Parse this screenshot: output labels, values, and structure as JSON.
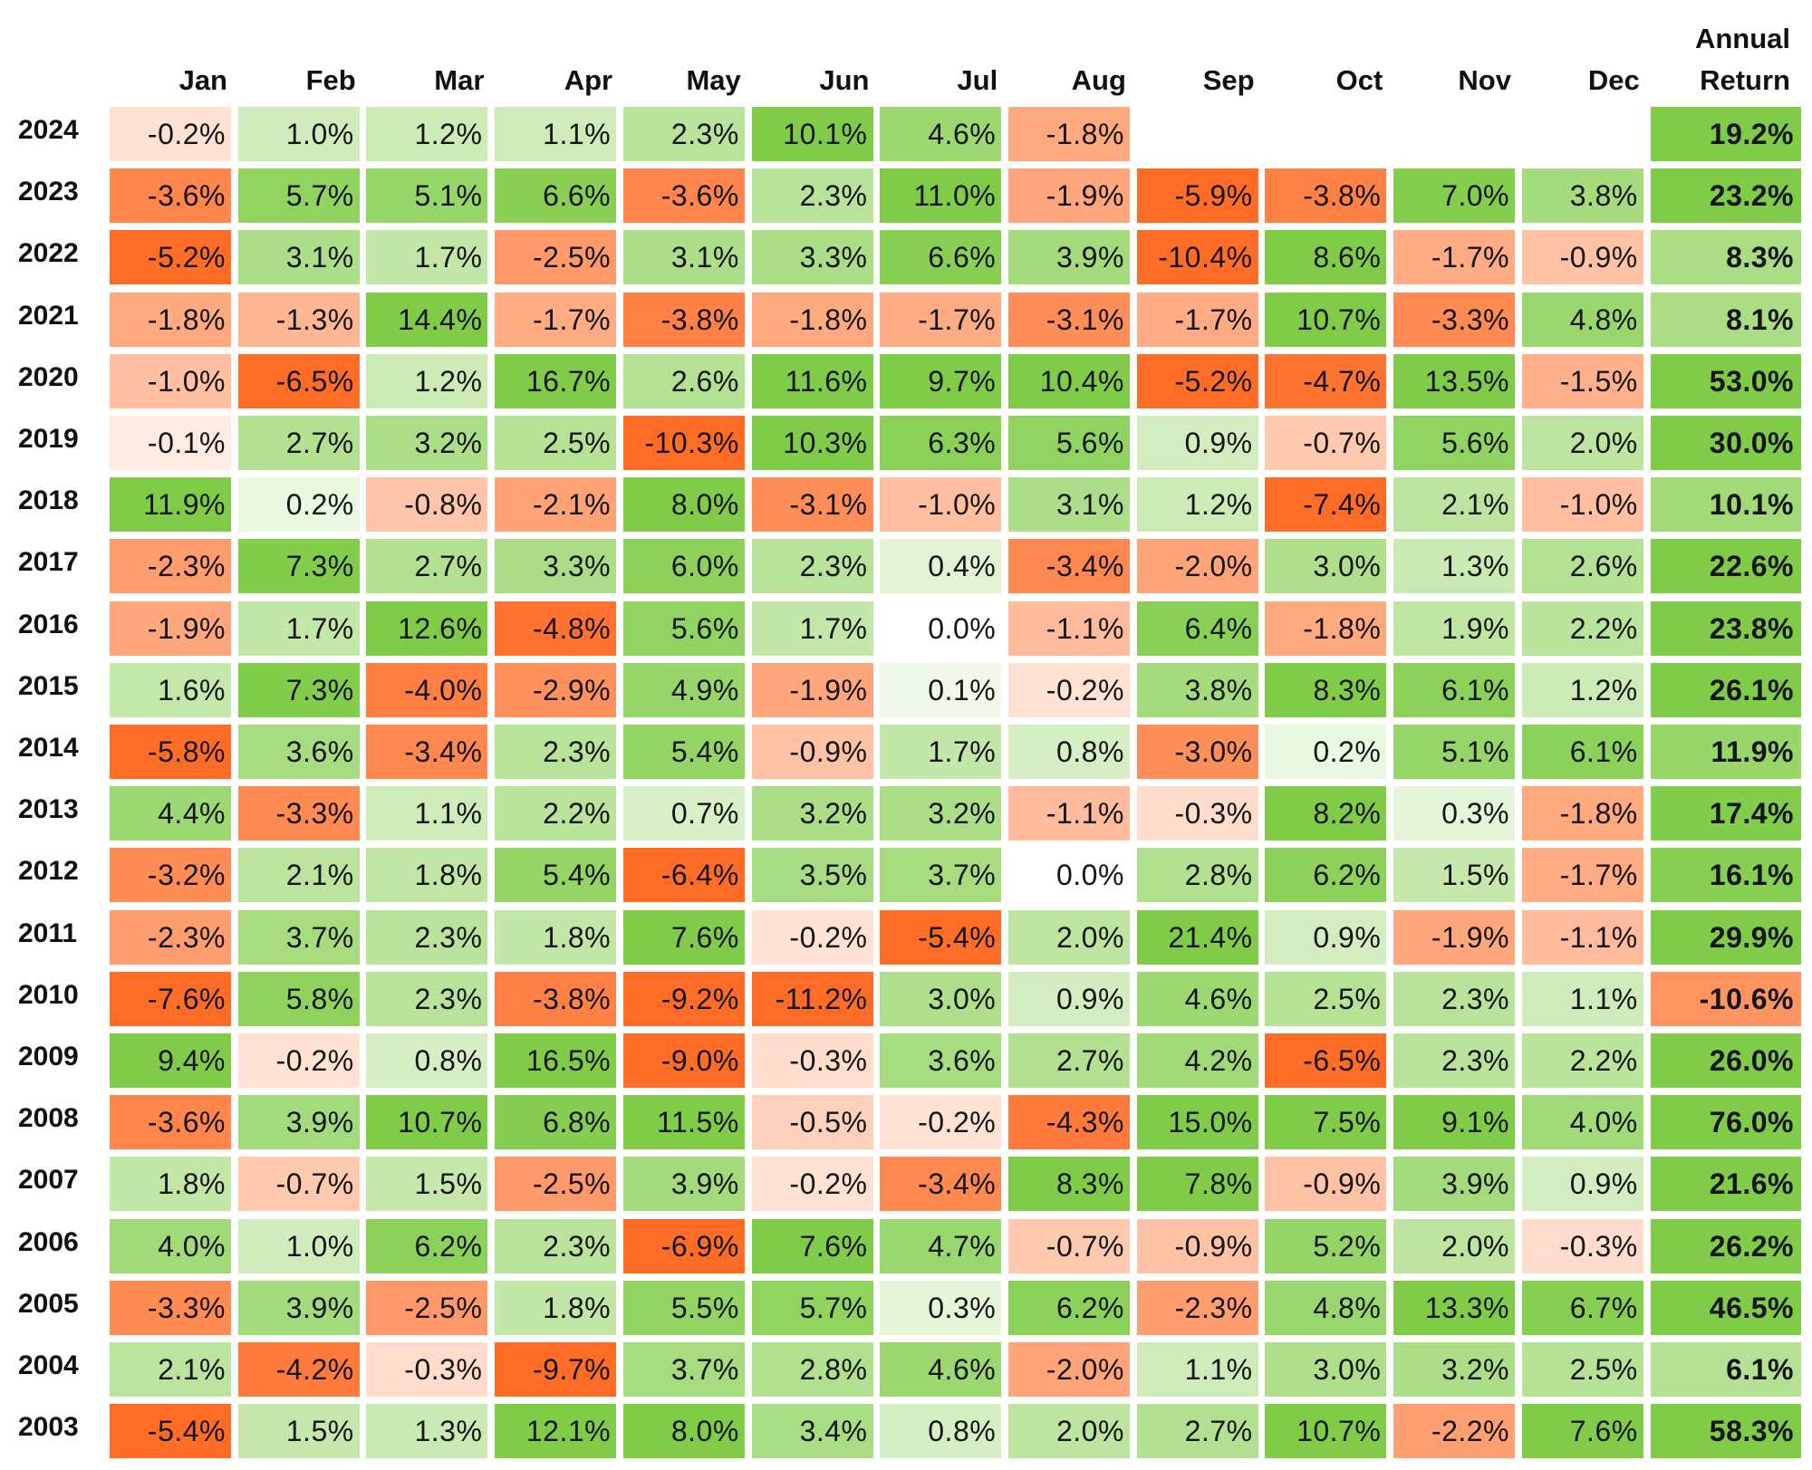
{
  "chart_data": {
    "type": "heatmap",
    "title": "",
    "columns": [
      "Jan",
      "Feb",
      "Mar",
      "Apr",
      "May",
      "Jun",
      "Jul",
      "Aug",
      "Sep",
      "Oct",
      "Nov",
      "Dec"
    ],
    "annual_header": [
      "Annual",
      "Return"
    ],
    "value_unit": "%",
    "color_scale": {
      "negative": "#ff6c26",
      "neutral": "#ffffff",
      "positive": "#80cc48"
    },
    "rows": [
      {
        "year": "2024",
        "values": [
          "-0.2%",
          "1.0%",
          "1.2%",
          "1.1%",
          "2.3%",
          "10.1%",
          "4.6%",
          "-1.8%",
          "",
          "",
          "",
          ""
        ],
        "annual": "19.2%"
      },
      {
        "year": "2023",
        "values": [
          "-3.6%",
          "5.7%",
          "5.1%",
          "6.6%",
          "-3.6%",
          "2.3%",
          "11.0%",
          "-1.9%",
          "-5.9%",
          "-3.8%",
          "7.0%",
          "3.8%"
        ],
        "annual": "23.2%"
      },
      {
        "year": "2022",
        "values": [
          "-5.2%",
          "3.1%",
          "1.7%",
          "-2.5%",
          "3.1%",
          "3.3%",
          "6.6%",
          "3.9%",
          "-10.4%",
          "8.6%",
          "-1.7%",
          "-0.9%"
        ],
        "annual": "8.3%"
      },
      {
        "year": "2021",
        "values": [
          "-1.8%",
          "-1.3%",
          "14.4%",
          "-1.7%",
          "-3.8%",
          "-1.8%",
          "-1.7%",
          "-3.1%",
          "-1.7%",
          "10.7%",
          "-3.3%",
          "4.8%"
        ],
        "annual": "8.1%"
      },
      {
        "year": "2020",
        "values": [
          "-1.0%",
          "-6.5%",
          "1.2%",
          "16.7%",
          "2.6%",
          "11.6%",
          "9.7%",
          "10.4%",
          "-5.2%",
          "-4.7%",
          "13.5%",
          "-1.5%"
        ],
        "annual": "53.0%"
      },
      {
        "year": "2019",
        "values": [
          "-0.1%",
          "2.7%",
          "3.2%",
          "2.5%",
          "-10.3%",
          "10.3%",
          "6.3%",
          "5.6%",
          "0.9%",
          "-0.7%",
          "5.6%",
          "2.0%"
        ],
        "annual": "30.0%"
      },
      {
        "year": "2018",
        "values": [
          "11.9%",
          "0.2%",
          "-0.8%",
          "-2.1%",
          "8.0%",
          "-3.1%",
          "-1.0%",
          "3.1%",
          "1.2%",
          "-7.4%",
          "2.1%",
          "-1.0%"
        ],
        "annual": "10.1%"
      },
      {
        "year": "2017",
        "values": [
          "-2.3%",
          "7.3%",
          "2.7%",
          "3.3%",
          "6.0%",
          "2.3%",
          "0.4%",
          "-3.4%",
          "-2.0%",
          "3.0%",
          "1.3%",
          "2.6%"
        ],
        "annual": "22.6%"
      },
      {
        "year": "2016",
        "values": [
          "-1.9%",
          "1.7%",
          "12.6%",
          "-4.8%",
          "5.6%",
          "1.7%",
          "0.0%",
          "-1.1%",
          "6.4%",
          "-1.8%",
          "1.9%",
          "2.2%"
        ],
        "annual": "23.8%"
      },
      {
        "year": "2015",
        "values": [
          "1.6%",
          "7.3%",
          "-4.0%",
          "-2.9%",
          "4.9%",
          "-1.9%",
          "0.1%",
          "-0.2%",
          "3.8%",
          "8.3%",
          "6.1%",
          "1.2%"
        ],
        "annual": "26.1%"
      },
      {
        "year": "2014",
        "values": [
          "-5.8%",
          "3.6%",
          "-3.4%",
          "2.3%",
          "5.4%",
          "-0.9%",
          "1.7%",
          "0.8%",
          "-3.0%",
          "0.2%",
          "5.1%",
          "6.1%"
        ],
        "annual": "11.9%"
      },
      {
        "year": "2013",
        "values": [
          "4.4%",
          "-3.3%",
          "1.1%",
          "2.2%",
          "0.7%",
          "3.2%",
          "3.2%",
          "-1.1%",
          "-0.3%",
          "8.2%",
          "0.3%",
          "-1.8%"
        ],
        "annual": "17.4%"
      },
      {
        "year": "2012",
        "values": [
          "-3.2%",
          "2.1%",
          "1.8%",
          "5.4%",
          "-6.4%",
          "3.5%",
          "3.7%",
          "0.0%",
          "2.8%",
          "6.2%",
          "1.5%",
          "-1.7%"
        ],
        "annual": "16.1%"
      },
      {
        "year": "2011",
        "values": [
          "-2.3%",
          "3.7%",
          "2.3%",
          "1.8%",
          "7.6%",
          "-0.2%",
          "-5.4%",
          "2.0%",
          "21.4%",
          "0.9%",
          "-1.9%",
          "-1.1%"
        ],
        "annual": "29.9%"
      },
      {
        "year": "2010",
        "values": [
          "-7.6%",
          "5.8%",
          "2.3%",
          "-3.8%",
          "-9.2%",
          "-11.2%",
          "3.0%",
          "0.9%",
          "4.6%",
          "2.5%",
          "2.3%",
          "1.1%"
        ],
        "annual": "-10.6%"
      },
      {
        "year": "2009",
        "values": [
          "9.4%",
          "-0.2%",
          "0.8%",
          "16.5%",
          "-9.0%",
          "-0.3%",
          "3.6%",
          "2.7%",
          "4.2%",
          "-6.5%",
          "2.3%",
          "2.2%"
        ],
        "annual": "26.0%"
      },
      {
        "year": "2008",
        "values": [
          "-3.6%",
          "3.9%",
          "10.7%",
          "6.8%",
          "11.5%",
          "-0.5%",
          "-0.2%",
          "-4.3%",
          "15.0%",
          "7.5%",
          "9.1%",
          "4.0%"
        ],
        "annual": "76.0%"
      },
      {
        "year": "2007",
        "values": [
          "1.8%",
          "-0.7%",
          "1.5%",
          "-2.5%",
          "3.9%",
          "-0.2%",
          "-3.4%",
          "8.3%",
          "7.8%",
          "-0.9%",
          "3.9%",
          "0.9%"
        ],
        "annual": "21.6%"
      },
      {
        "year": "2006",
        "values": [
          "4.0%",
          "1.0%",
          "6.2%",
          "2.3%",
          "-6.9%",
          "7.6%",
          "4.7%",
          "-0.7%",
          "-0.9%",
          "5.2%",
          "2.0%",
          "-0.3%"
        ],
        "annual": "26.2%"
      },
      {
        "year": "2005",
        "values": [
          "-3.3%",
          "3.9%",
          "-2.5%",
          "1.8%",
          "5.5%",
          "5.7%",
          "0.3%",
          "6.2%",
          "-2.3%",
          "4.8%",
          "13.3%",
          "6.7%"
        ],
        "annual": "46.5%"
      },
      {
        "year": "2004",
        "values": [
          "2.1%",
          "-4.2%",
          "-0.3%",
          "-9.7%",
          "3.7%",
          "2.8%",
          "4.6%",
          "-2.0%",
          "1.1%",
          "3.0%",
          "3.2%",
          "2.5%"
        ],
        "annual": "6.1%"
      },
      {
        "year": "2003",
        "values": [
          "-5.4%",
          "1.5%",
          "1.3%",
          "12.1%",
          "8.0%",
          "3.4%",
          "0.8%",
          "2.0%",
          "2.7%",
          "10.7%",
          "-2.2%",
          "7.6%"
        ],
        "annual": "58.3%"
      }
    ]
  }
}
